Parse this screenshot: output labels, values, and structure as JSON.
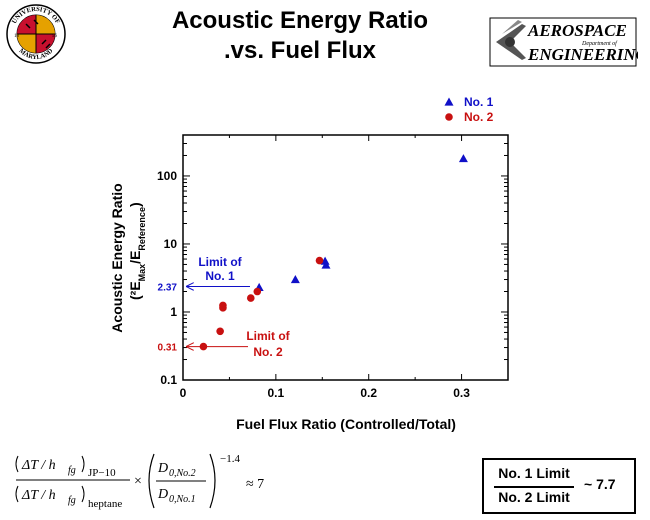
{
  "header": {
    "title_line1": "Acoustic Energy Ratio",
    "title_line2": ".vs. Fuel Flux",
    "seal": {
      "top_text": "UNIVERSITY OF",
      "bottom_text": "MARYLAND",
      "year_left": "18",
      "year_right": "56"
    },
    "logo": {
      "line1": "AEROSPACE",
      "small": "Department of",
      "line2": "ENGINEERING"
    }
  },
  "chart_data": {
    "type": "scatter",
    "xlabel": "Fuel Flux Ratio (Controlled/Total)",
    "ylabel_line1": "Acoustic Energy Ratio",
    "ylabel_line2": "(²E",
    "ylabel_sub1": "Max",
    "ylabel_mid": "/E",
    "ylabel_sub2": "Reference",
    "ylabel_end": ")",
    "xlim": [
      0,
      0.35
    ],
    "ylim": [
      0.1,
      400
    ],
    "yscale": "log",
    "x_ticks": [
      0,
      0.1,
      0.2,
      0.3
    ],
    "x_tick_labels": [
      "0",
      "0.1",
      "0.2",
      "0.3"
    ],
    "y_ticks": [
      0.1,
      1,
      10,
      100
    ],
    "y_tick_labels": [
      "0.1",
      "1",
      "10",
      "100"
    ],
    "legend_position": "top-right",
    "series": [
      {
        "name": "No. 1",
        "marker": "triangle",
        "color": "#1010c8",
        "points": [
          [
            0.082,
            2.3
          ],
          [
            0.121,
            3.0
          ],
          [
            0.153,
            5.6
          ],
          [
            0.154,
            4.9
          ],
          [
            0.302,
            180
          ]
        ]
      },
      {
        "name": "No. 2",
        "marker": "circle",
        "color": "#c81010",
        "points": [
          [
            0.022,
            0.31
          ],
          [
            0.04,
            0.52
          ],
          [
            0.043,
            1.25
          ],
          [
            0.043,
            1.15
          ],
          [
            0.073,
            1.6
          ],
          [
            0.08,
            2.0
          ],
          [
            0.147,
            5.7
          ]
        ]
      }
    ],
    "annotations": [
      {
        "text_line1": "Limit of",
        "text_line2": "No. 1",
        "value_label": "2.37",
        "y": 2.37,
        "color": "#1010c8"
      },
      {
        "text_line1": "Limit of",
        "text_line2": "No. 2",
        "value_label": "0.31",
        "y": 0.31,
        "color": "#c81010"
      }
    ]
  },
  "formula": {
    "num_core": "ΔT / h",
    "num_sub": "fg",
    "num_outer_sub": "JP−10",
    "den_core": "ΔT / h",
    "den_sub": "fg",
    "den_outer_sub": "heptane",
    "times": "×",
    "frac_num": "D",
    "frac_num_sub": "0,No.2",
    "frac_den": "D",
    "frac_den_sub": "0,No.1",
    "exponent": "−1.4",
    "result": "≈ 7"
  },
  "ratio_box": {
    "numerator": "No. 1 Limit",
    "denominator": "No. 2 Limit",
    "value": "~ 7.7"
  }
}
